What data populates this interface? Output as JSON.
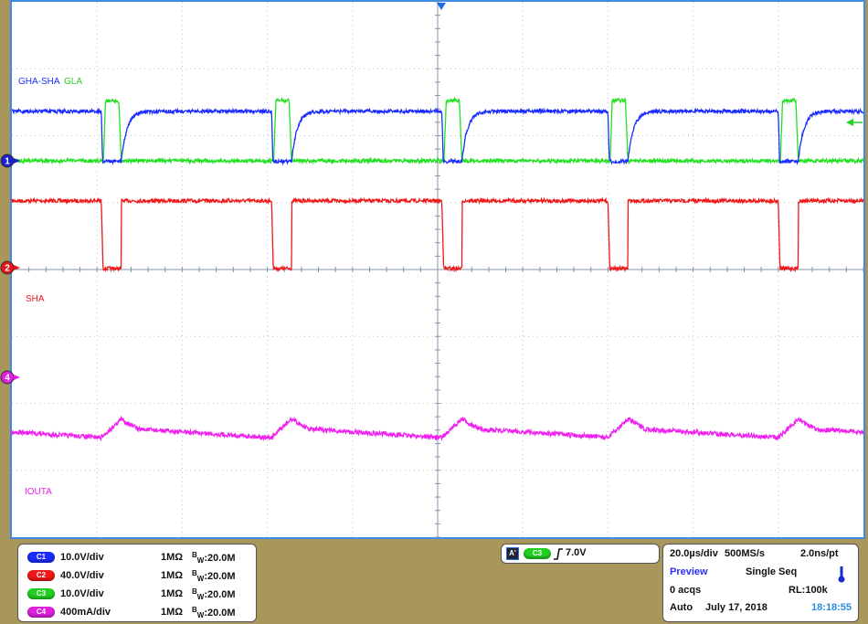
{
  "chart_data": {
    "type": "line",
    "title": "",
    "xlabel": "",
    "ylabel": "",
    "xlim_us": [
      0,
      200
    ],
    "divisions": {
      "horizontal": 10,
      "vertical": 8
    },
    "grid": true,
    "period_us": 40,
    "pulse_starts_us": [
      21,
      61,
      101,
      140,
      180
    ],
    "pulse_width_us": 4.7,
    "series": [
      {
        "name": "GHA-SHA",
        "channel": 1,
        "color": "#1a2cff",
        "unit": "V",
        "scale_per_div": 10,
        "high": 7.4,
        "low": 0,
        "marker": "1",
        "marker_color": "#1a22c8"
      },
      {
        "name": "GLA",
        "channel": 3,
        "color": "#22e022",
        "unit": "V",
        "scale_per_div": 10,
        "high": 9,
        "low": 0
      },
      {
        "name": "SHA",
        "channel": 2,
        "color": "#f01818",
        "unit": "V",
        "scale_per_div": 40,
        "high": 40,
        "low": 0,
        "marker": "2",
        "marker_color": "#e01818"
      },
      {
        "name": "IOUTA",
        "channel": 4,
        "color": "#f020f0",
        "unit": "mA",
        "scale_per_div": 400,
        "baseline_start": -310,
        "baseline_end": -360,
        "peak": -250,
        "marker": "4",
        "marker_color": "#e020e0"
      }
    ]
  },
  "channels": [
    {
      "badge": "C1",
      "scale": "10.0V/div",
      "impedance": "1MΩ",
      "bw_b": "B",
      "bw_w": "W",
      "bw_value": ":20.0M",
      "color": "#1a2cff"
    },
    {
      "badge": "C2",
      "scale": "40.0V/div",
      "impedance": "1MΩ",
      "bw_b": "B",
      "bw_w": "W",
      "bw_value": ":20.0M",
      "color": "#f01818"
    },
    {
      "badge": "C3",
      "scale": "10.0V/div",
      "impedance": "1MΩ",
      "bw_b": "B",
      "bw_w": "W",
      "bw_value": ":20.0M",
      "color": "#22d022"
    },
    {
      "badge": "C4",
      "scale": "400mA/div",
      "impedance": "1MΩ",
      "bw_b": "B",
      "bw_w": "W",
      "bw_value": ":20.0M",
      "color": "#e020e0"
    }
  ],
  "trigger": {
    "label": "A'",
    "source": "C3",
    "slope": "rising",
    "level": "7.0V"
  },
  "timebase": {
    "scale": "20.0µs/div",
    "sample_rate": "500MS/s",
    "resolution": "2.0ns/pt",
    "mode": "Preview",
    "acq_mode": "Single Seq",
    "acqs": "0 acqs",
    "record_length": "RL:100k",
    "trigger_mode": "Auto",
    "date": "July 17, 2018",
    "time": "18:18:55",
    "icon": "thermometer-icon"
  },
  "colors": {
    "background": "#a8965a",
    "border": "#3c8ce6",
    "grid": "#9aa6b8",
    "highlight_blue": "#2a2cff",
    "time_blue": "#2a8ce6"
  }
}
